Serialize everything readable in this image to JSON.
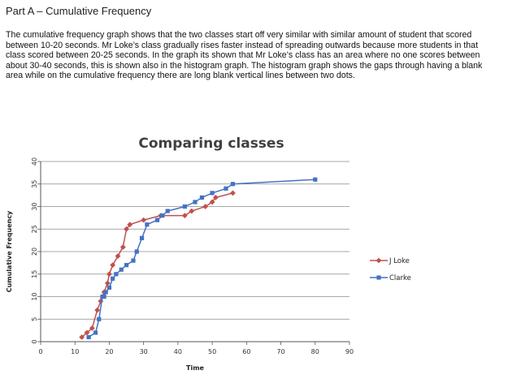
{
  "page": {
    "heading": "Part A – Cumulative Frequency",
    "paragraph": "The cumulative frequency graph shows that the two classes start off very similar with similar amount of student that scored between 10-20 seconds. Mr Loke’s class gradually rises faster instead of spreading outwards because more students in that class scored between 20-25 seconds. In the graph its shown that Mr Loke’s class has an area where no one scores between about 30-40 seconds, this is shown also in the histogram graph. The histogram graph shows the gaps through having a blank area while on the cumulative frequency there are long blank vertical lines between two dots."
  },
  "chart_data": {
    "type": "line",
    "title": "Comparing classes",
    "xlabel": "Time",
    "ylabel": "Cumulative Frequency",
    "xlim": [
      0,
      90
    ],
    "ylim": [
      0,
      40
    ],
    "xticks": [
      "0",
      "10",
      "20",
      "30",
      "40",
      "50",
      "60",
      "70",
      "80",
      "90"
    ],
    "yticks": [
      "0",
      "5",
      "10",
      "15",
      "20",
      "25",
      "30",
      "35",
      "40"
    ],
    "grid": "horizontal",
    "legend": "right",
    "series": [
      {
        "name": "J Loke",
        "color": "#c0504d",
        "marker": "diamond",
        "points": [
          [
            12,
            1
          ],
          [
            13.5,
            2
          ],
          [
            15,
            3
          ],
          [
            16.5,
            7
          ],
          [
            17.5,
            9
          ],
          [
            18.5,
            11
          ],
          [
            19.5,
            13
          ],
          [
            20,
            15
          ],
          [
            21,
            17
          ],
          [
            22.5,
            19
          ],
          [
            24,
            21
          ],
          [
            25,
            25
          ],
          [
            26,
            26
          ],
          [
            30,
            27
          ],
          [
            35,
            28
          ],
          [
            42,
            28
          ],
          [
            44,
            29
          ],
          [
            48,
            30
          ],
          [
            50,
            31
          ],
          [
            51,
            32
          ],
          [
            56,
            33
          ]
        ]
      },
      {
        "name": "Clarke",
        "color": "#4472c4",
        "marker": "square",
        "points": [
          [
            14,
            1
          ],
          [
            16,
            2
          ],
          [
            17,
            5
          ],
          [
            18,
            10
          ],
          [
            18.5,
            10
          ],
          [
            19,
            11
          ],
          [
            20,
            12
          ],
          [
            21,
            14
          ],
          [
            22,
            15
          ],
          [
            23.5,
            16
          ],
          [
            25,
            17
          ],
          [
            27,
            18
          ],
          [
            28,
            20
          ],
          [
            29.5,
            23
          ],
          [
            31,
            26
          ],
          [
            34,
            27
          ],
          [
            35.5,
            28
          ],
          [
            37,
            29
          ],
          [
            42,
            30
          ],
          [
            45,
            31
          ],
          [
            47,
            32
          ],
          [
            50,
            33
          ],
          [
            54,
            34
          ],
          [
            56,
            35
          ],
          [
            80,
            36
          ]
        ]
      }
    ]
  }
}
